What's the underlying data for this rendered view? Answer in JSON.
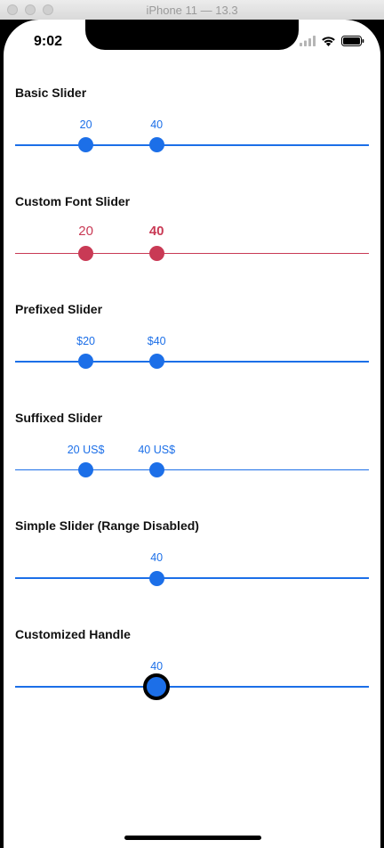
{
  "window": {
    "title": "iPhone 11 — 13.3"
  },
  "status_bar": {
    "time": "9:02",
    "icons": [
      "signal-icon",
      "wifi-icon",
      "battery-icon"
    ]
  },
  "colors": {
    "blue": "#1c6fe8",
    "red": "#c93a55",
    "handle_border": "#000000"
  },
  "sliders": [
    {
      "title": "Basic Slider",
      "low_label": "20",
      "high_label": "40",
      "low_value": 20,
      "high_value": 40,
      "color": "#1c6fe8"
    },
    {
      "title": "Custom Font Slider",
      "low_label": "20",
      "high_label": "40",
      "low_value": 20,
      "high_value": 40,
      "color": "#c93a55"
    },
    {
      "title": "Prefixed Slider",
      "low_label": "$20",
      "high_label": "$40",
      "low_value": 20,
      "high_value": 40,
      "color": "#1c6fe8"
    },
    {
      "title": "Suffixed Slider",
      "low_label": "20 US$",
      "high_label": "40 US$",
      "low_value": 20,
      "high_value": 40,
      "color": "#1c6fe8"
    },
    {
      "title": "Simple Slider (Range Disabled)",
      "value_label": "40",
      "value": 40,
      "color": "#1c6fe8"
    },
    {
      "title": "Customized Handle",
      "value_label": "40",
      "value": 40,
      "color": "#1c6fe8"
    }
  ]
}
